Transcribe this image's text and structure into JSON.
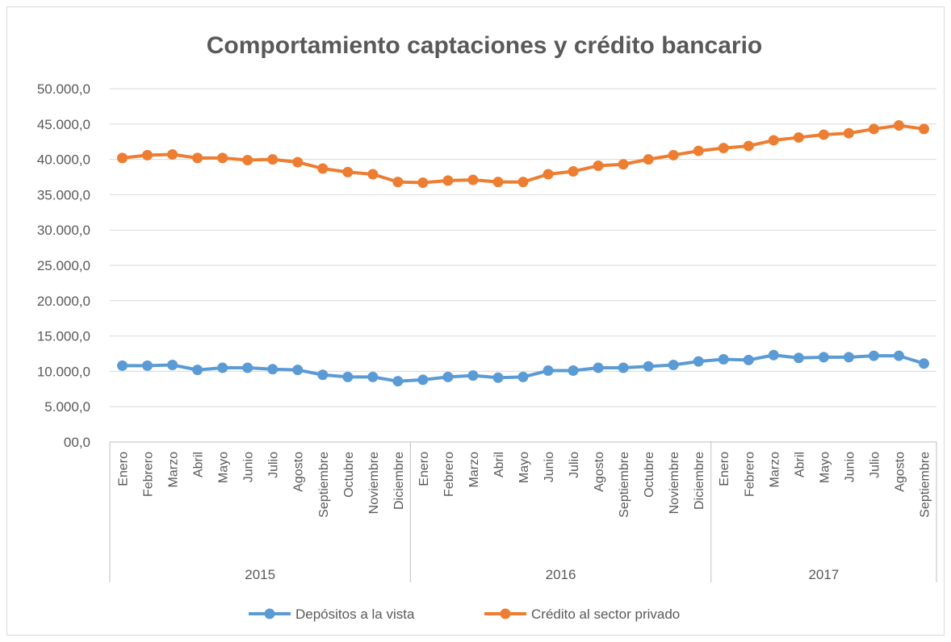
{
  "chart_data": {
    "type": "line",
    "title": "Comportamiento captaciones y crédito bancario",
    "ylim": [
      0,
      50000
    ],
    "yticks": [
      "00,0",
      "5.000,0",
      "10.000,0",
      "15.000,0",
      "20.000,0",
      "25.000,0",
      "30.000,0",
      "35.000,0",
      "40.000,0",
      "45.000,0",
      "50.000,0"
    ],
    "grid": true,
    "legend_position": "bottom",
    "groups": [
      {
        "year": "2015",
        "months": [
          "Enero",
          "Febrero",
          "Marzo",
          "Abril",
          "Mayo",
          "Junio",
          "Julio",
          "Agosto",
          "Septiembre",
          "Octubre",
          "Noviembre",
          "Diciembre"
        ]
      },
      {
        "year": "2016",
        "months": [
          "Enero",
          "Febrero",
          "Marzo",
          "Abril",
          "Mayo",
          "Junio",
          "Julio",
          "Agosto",
          "Septiembre",
          "Octubre",
          "Noviembre",
          "Diciembre"
        ]
      },
      {
        "year": "2017",
        "months": [
          "Enero",
          "Febrero",
          "Marzo",
          "Abril",
          "Mayo",
          "Junio",
          "Julio",
          "Agosto",
          "Septiembre"
        ]
      }
    ],
    "series": [
      {
        "name": "Depósitos a la vista",
        "color": "#5b9bd5",
        "values": [
          10800,
          10800,
          10900,
          10200,
          10500,
          10500,
          10300,
          10200,
          9500,
          9200,
          9200,
          8600,
          8800,
          9200,
          9400,
          9100,
          9200,
          10100,
          10100,
          10500,
          10500,
          10700,
          10900,
          11400,
          11700,
          11600,
          12300,
          11900,
          12000,
          12000,
          12200,
          12200,
          11100
        ]
      },
      {
        "name": "Crédito al sector privado",
        "color": "#ed7d31",
        "values": [
          40200,
          40600,
          40700,
          40200,
          40200,
          39900,
          40000,
          39600,
          38700,
          38200,
          37900,
          36800,
          36700,
          37000,
          37100,
          36800,
          36800,
          37900,
          38300,
          39100,
          39300,
          40000,
          40600,
          41200,
          41600,
          41900,
          42700,
          43100,
          43500,
          43700,
          44300,
          44800,
          44300
        ]
      }
    ]
  }
}
